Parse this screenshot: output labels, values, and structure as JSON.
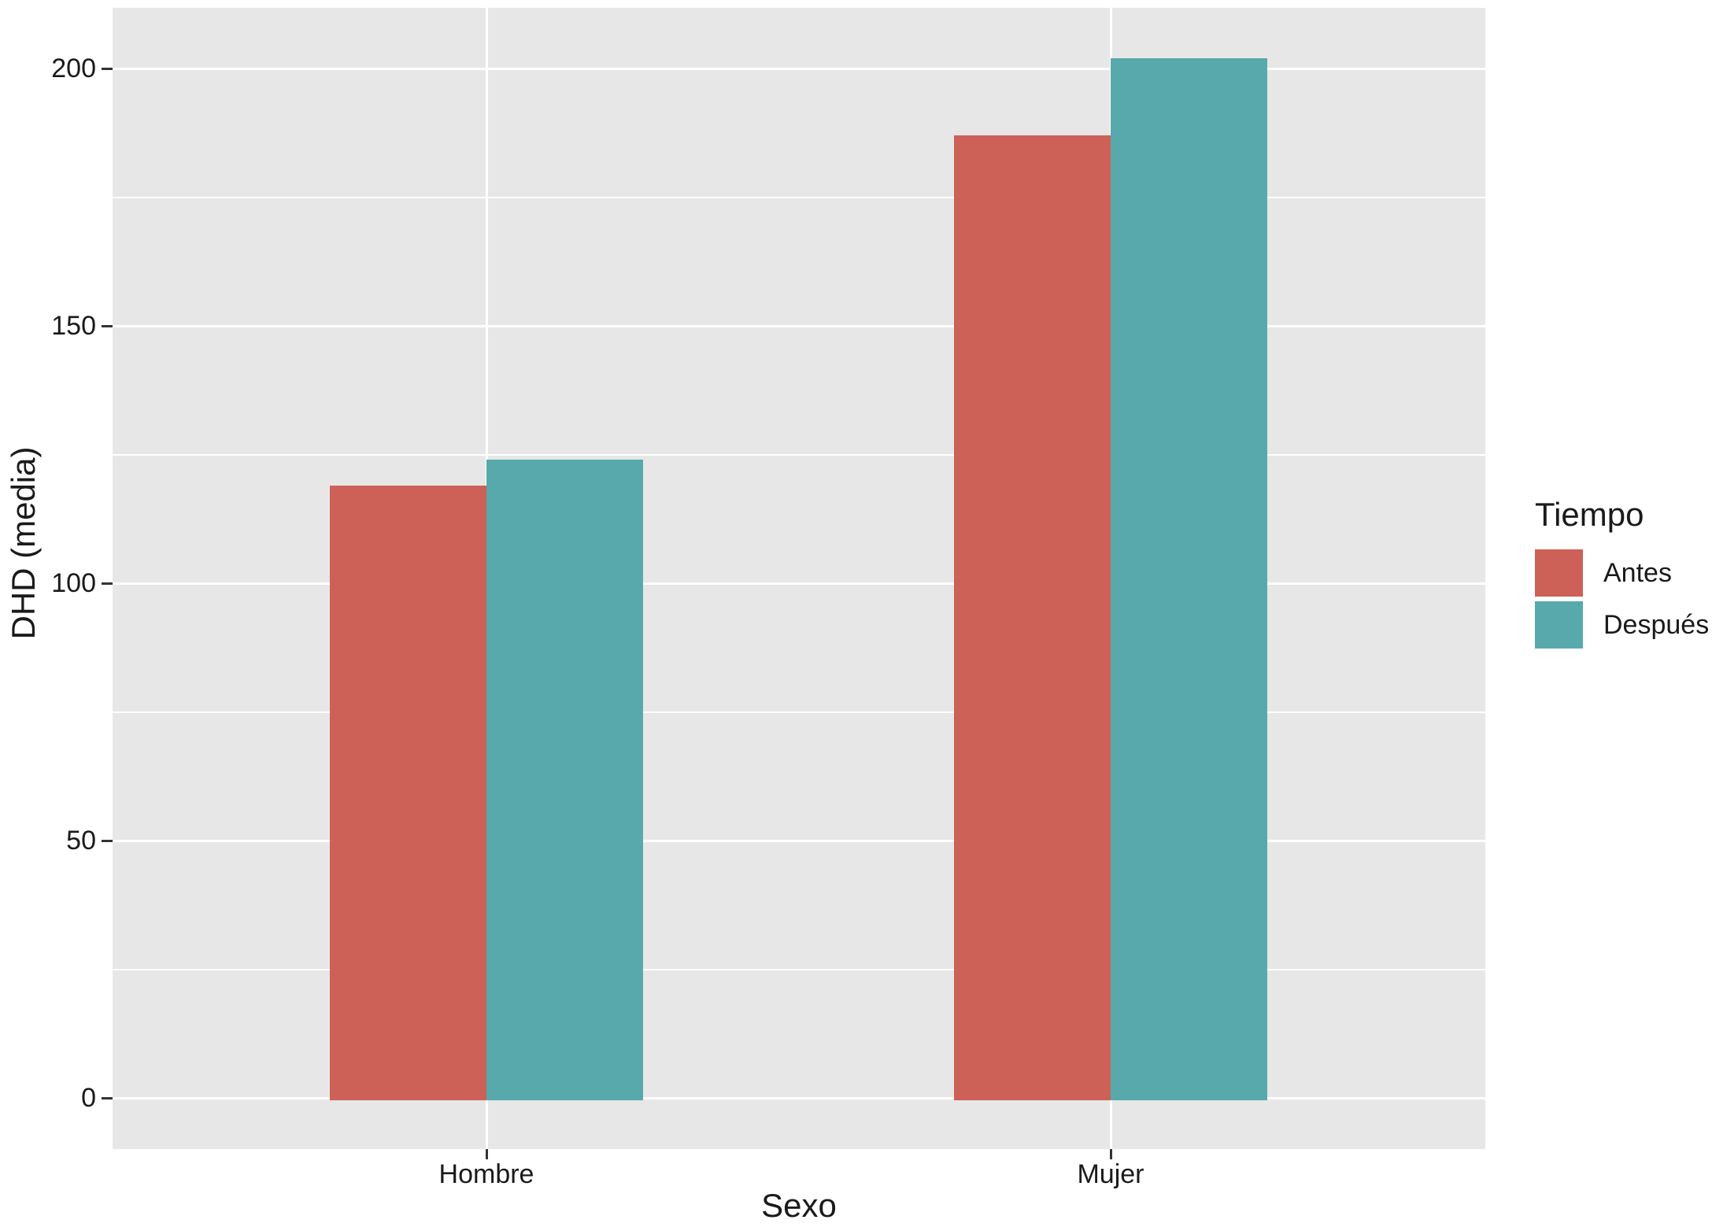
{
  "chart_data": {
    "type": "bar",
    "title": "",
    "categories": [
      "Hombre",
      "Mujer"
    ],
    "series": [
      {
        "name": "Antes",
        "color": "#CD6157",
        "values": [
          119,
          187
        ]
      },
      {
        "name": "Después",
        "color": "#57A9AC",
        "values": [
          124,
          202
        ]
      }
    ],
    "xlabel": "Sexo",
    "ylabel": "DHD (media)",
    "ylim": [
      0,
      212
    ],
    "yticks": [
      0,
      50,
      100,
      150,
      200
    ],
    "yticks_minor": [
      25,
      75,
      125,
      175
    ],
    "grid": "on",
    "legend": {
      "title": "Tiempo",
      "position": "right"
    },
    "panel_bg": "#E7E7E7",
    "grid_color": "#FFFFFF"
  }
}
